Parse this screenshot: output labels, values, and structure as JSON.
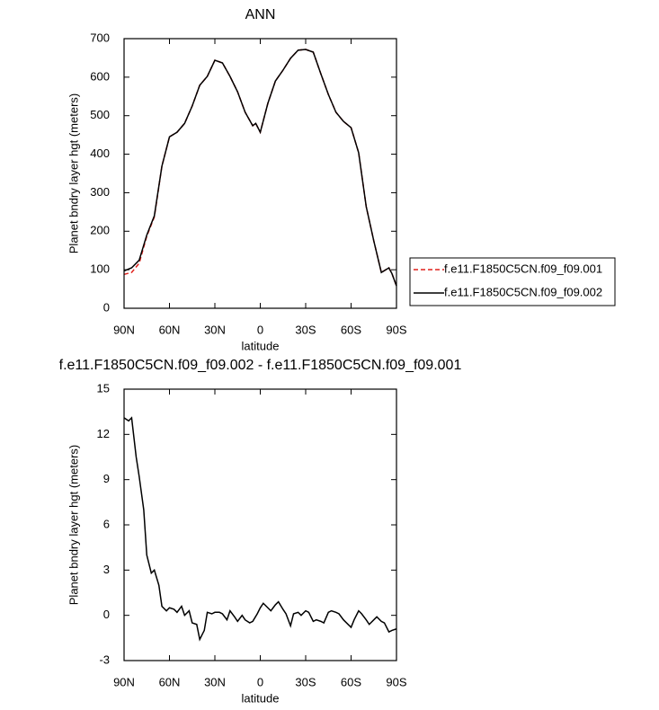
{
  "chart_data": [
    {
      "type": "line",
      "title": "ANN",
      "y_label": "Planet bndry layer hgt (meters)",
      "x_label": "latitude",
      "x": [
        90,
        85,
        80,
        75,
        70,
        65,
        60,
        55,
        50,
        45,
        40,
        35,
        30,
        25,
        20,
        15,
        10,
        5,
        3,
        0,
        -5,
        -10,
        -15,
        -20,
        -25,
        -30,
        -35,
        -40,
        -45,
        -50,
        -55,
        -60,
        -65,
        -70,
        -75,
        -80,
        -85,
        -87,
        -90
      ],
      "series": [
        {
          "name": "f.e11.F1850C5CN.f09_f09.001",
          "color": "#e0201b",
          "linestyle": "dashed",
          "values": [
            88,
            93,
            117,
            187,
            237,
            369,
            445,
            457,
            480,
            525,
            579,
            602,
            644,
            637,
            602,
            562,
            509,
            474,
            480,
            457,
            532,
            590,
            618,
            649,
            670,
            672,
            665,
            609,
            555,
            509,
            485,
            469,
            404,
            264,
            175,
            93,
            105,
            90,
            58
          ]
        },
        {
          "name": "f.e11.F1850C5CN.f09_f09.002",
          "color": "#000000",
          "linestyle": "solid",
          "values": [
            97,
            105,
            125,
            190,
            240,
            369,
            445,
            457,
            480,
            525,
            579,
            602,
            644,
            637,
            602,
            562,
            509,
            474,
            480,
            457,
            532,
            590,
            618,
            649,
            670,
            672,
            665,
            609,
            555,
            509,
            485,
            469,
            404,
            264,
            175,
            93,
            105,
            90,
            58
          ]
        }
      ],
      "xlim": [
        90,
        -90
      ],
      "xticks": [
        {
          "value": 90,
          "label": "90N"
        },
        {
          "value": 60,
          "label": "60N"
        },
        {
          "value": 30,
          "label": "30N"
        },
        0,
        {
          "value": -30,
          "label": "30S"
        },
        {
          "value": -60,
          "label": "60S"
        },
        {
          "value": -90,
          "label": "90S"
        }
      ],
      "ylim": [
        0,
        700
      ],
      "yticks": [
        0,
        100,
        200,
        300,
        400,
        500,
        600,
        700
      ],
      "legend": "right"
    },
    {
      "type": "line",
      "title": "f.e11.F1850C5CN.f09_f09.002 - f.e11.F1850C5CN.f09_f09.001",
      "y_label": "Planet bndry layer hgt (meters)",
      "x_label": "latitude",
      "x": [
        90,
        87,
        85,
        82,
        80,
        77,
        75,
        72,
        70,
        67,
        65,
        62,
        60,
        57,
        55,
        52,
        50,
        47,
        45,
        42,
        40,
        37,
        35,
        32,
        30,
        27,
        25,
        22,
        20,
        17,
        15,
        12,
        10,
        7,
        5,
        2,
        0,
        -2,
        -5,
        -7,
        -10,
        -12,
        -15,
        -17,
        -20,
        -22,
        -25,
        -27,
        -30,
        -32,
        -35,
        -37,
        -40,
        -42,
        -45,
        -47,
        -50,
        -52,
        -55,
        -57,
        -60,
        -62,
        -65,
        -67,
        -70,
        -72,
        -75,
        -77,
        -80,
        -82,
        -85,
        -87,
        -90
      ],
      "series": [
        {
          "color": "#000000",
          "linestyle": "solid",
          "values": [
            13.1,
            12.9,
            13.1,
            10.5,
            9.2,
            7,
            4,
            2.8,
            3,
            2,
            0.6,
            0.3,
            0.5,
            0.4,
            0.2,
            0.6,
            0,
            0.3,
            -0.5,
            -0.6,
            -1.6,
            -1.0,
            0.2,
            0.1,
            0.2,
            0.2,
            0.1,
            -0.3,
            0.3,
            -0.1,
            -0.4,
            0.0,
            -0.3,
            -0.5,
            -0.4,
            0.1,
            0.5,
            0.8,
            0.5,
            0.3,
            0.7,
            0.9,
            0.4,
            0.1,
            -0.7,
            0.1,
            0.2,
            0.0,
            0.3,
            0.2,
            -0.4,
            -0.3,
            -0.4,
            -0.5,
            0.2,
            0.3,
            0.2,
            0.1,
            -0.3,
            -0.5,
            -0.8,
            -0.3,
            0.3,
            0.1,
            -0.3,
            -0.6,
            -0.3,
            -0.1,
            -0.4,
            -0.5,
            -1.1,
            -1.0,
            -0.9
          ]
        }
      ],
      "xlim": [
        90,
        -90
      ],
      "xticks": [
        {
          "value": 90,
          "label": "90N"
        },
        {
          "value": 60,
          "label": "60N"
        },
        {
          "value": 30,
          "label": "30N"
        },
        0,
        {
          "value": -30,
          "label": "30S"
        },
        {
          "value": -60,
          "label": "60S"
        },
        {
          "value": -90,
          "label": "90S"
        }
      ],
      "ylim": [
        -3,
        15
      ],
      "yticks": [
        -3,
        0,
        3,
        6,
        9,
        12,
        15
      ]
    }
  ]
}
